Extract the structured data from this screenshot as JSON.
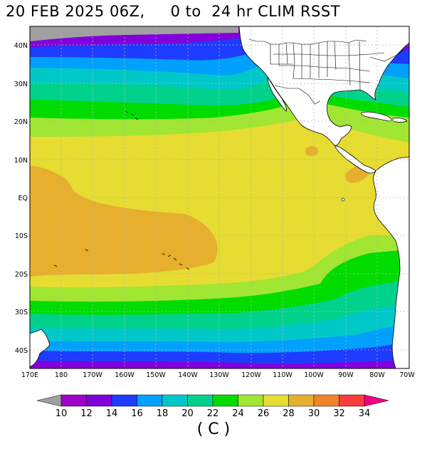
{
  "title": "20 FEB 2025 06Z,     0 to  24 hr CLIM RSST",
  "units": "( C )",
  "lat_labels": [
    "40N",
    "30N",
    "20N",
    "10N",
    "EQ",
    "10S",
    "20S",
    "30S",
    "40S"
  ],
  "lon_labels": [
    "170E",
    "180",
    "170W",
    "160W",
    "150W",
    "140W",
    "130W",
    "120W",
    "110W",
    "100W",
    "90W",
    "80W",
    "70W"
  ],
  "colorbar": {
    "labels": [
      "10",
      "12",
      "14",
      "16",
      "18",
      "20",
      "22",
      "24",
      "26",
      "28",
      "30",
      "32",
      "34"
    ],
    "below_color": "#a0a0a0",
    "colors": [
      "#a000c8",
      "#8200dc",
      "#1e3cff",
      "#00a0ff",
      "#00c8c8",
      "#00d28c",
      "#00dc00",
      "#a0e632",
      "#e6dc32",
      "#e6af2d",
      "#f08228",
      "#fa3c3c",
      "#f00082"
    ]
  },
  "colors": {
    "land": "#ffffff",
    "missing": "#a0a0a0",
    "grid": "#b4b4b4"
  }
}
